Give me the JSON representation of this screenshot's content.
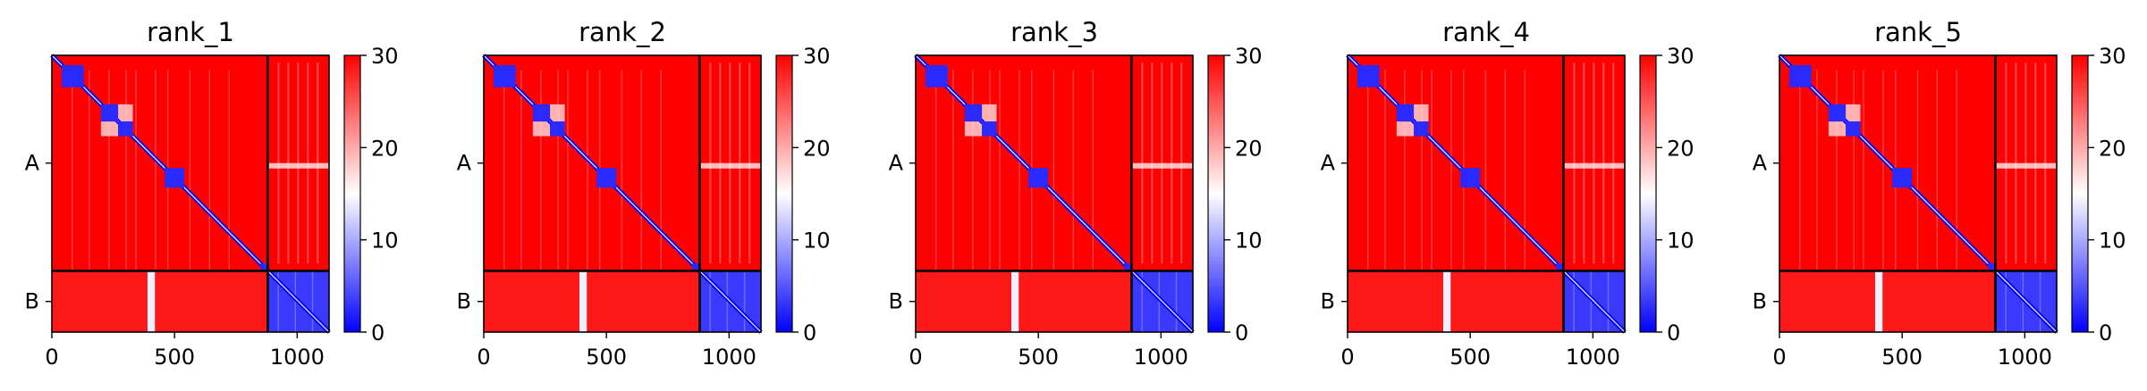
{
  "chart_data": {
    "type": "heatmap",
    "panels": [
      {
        "title": "rank_1"
      },
      {
        "title": "rank_2"
      },
      {
        "title": "rank_3"
      },
      {
        "title": "rank_4"
      },
      {
        "title": "rank_5"
      }
    ],
    "colormap": {
      "low": "#0000ff",
      "mid": "#ffffff",
      "high": "#ff0000"
    },
    "colorbar": {
      "range": [
        0,
        30
      ],
      "ticks": [
        "0",
        "10",
        "20",
        "30"
      ]
    },
    "x_axis": {
      "range": [
        0,
        1130
      ],
      "ticks": [
        0,
        500,
        1000
      ],
      "tick_labels": [
        "0",
        "500",
        "1000"
      ]
    },
    "chains": [
      {
        "label": "A",
        "start": 0,
        "end": 880
      },
      {
        "label": "B",
        "start": 880,
        "end": 1130
      }
    ],
    "chain_boundary": 880,
    "diagonal_blocks": [
      [
        40,
        130
      ],
      [
        200,
        270
      ],
      [
        270,
        330
      ],
      [
        460,
        540
      ],
      [
        850,
        880
      ]
    ],
    "off_diagonal_pair": [
      [
        200,
        270
      ],
      [
        270,
        330
      ]
    ],
    "b_self_block": [
      880,
      1130
    ],
    "b_vs_a_stripe": [
      390,
      420
    ],
    "grid": false
  }
}
